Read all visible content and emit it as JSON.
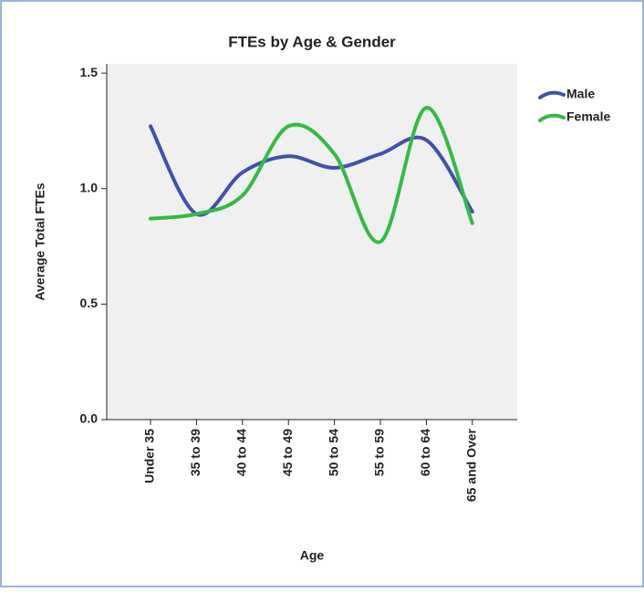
{
  "chart_data": {
    "type": "line",
    "title": "FTEs by Age & Gender",
    "x_label": "Age",
    "y_label": "Average Total FTEs",
    "categories": [
      "Under 35",
      "35 to 39",
      "40 to 44",
      "45 to 49",
      "50 to 54",
      "55 to 59",
      "60 to 64",
      "65 and Over"
    ],
    "series": [
      {
        "name": "Male",
        "color": "#3f51b0",
        "values": [
          1.27,
          0.89,
          1.07,
          1.14,
          1.09,
          1.15,
          1.21,
          0.9
        ]
      },
      {
        "name": "Female",
        "color": "#33bb44",
        "values": [
          0.87,
          0.89,
          0.97,
          1.27,
          1.15,
          0.77,
          1.35,
          0.85
        ]
      }
    ],
    "ylim": [
      0,
      1.54
    ],
    "yticks": [
      {
        "value": 0,
        "label": "0.0"
      },
      0.5,
      {
        "value": 1,
        "label": "1.0"
      },
      1.5
    ],
    "grid": false,
    "smooth": true,
    "legend": "right"
  }
}
